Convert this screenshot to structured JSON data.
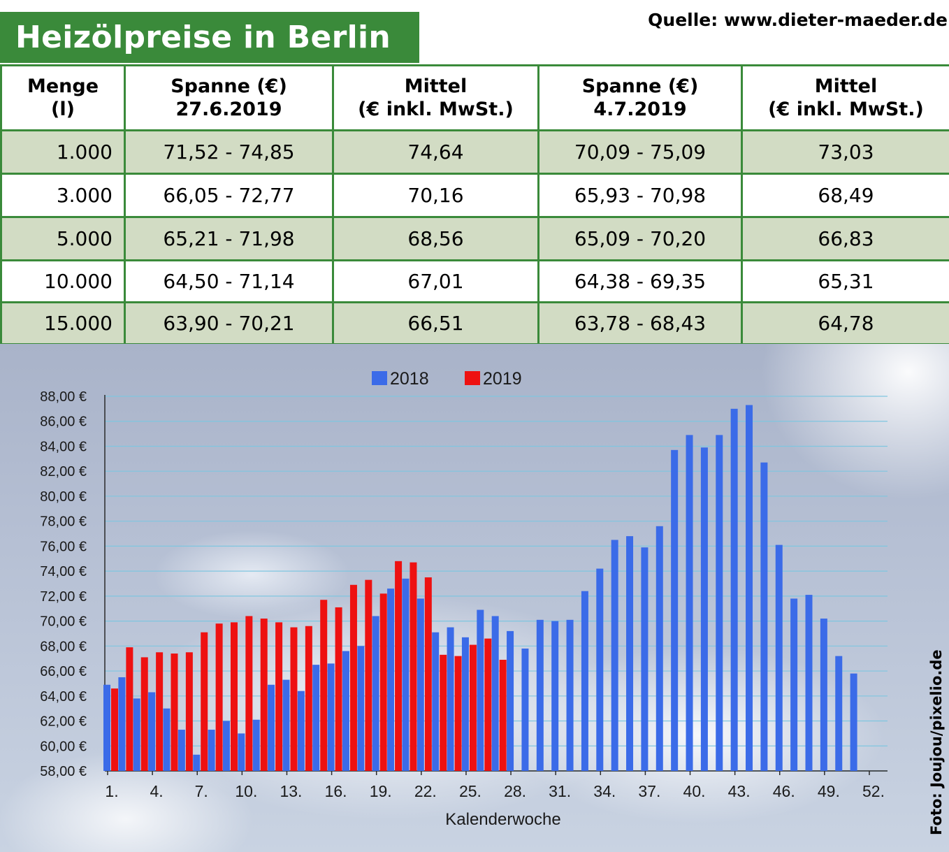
{
  "header": {
    "title": "Heizölpreise in Berlin",
    "source": "Quelle: www.dieter-maeder.de"
  },
  "table": {
    "headers": [
      [
        "Menge",
        "(l)"
      ],
      [
        "Spanne (€)",
        "27.6.2019"
      ],
      [
        "Mittel",
        "(€ inkl. MwSt.)"
      ],
      [
        "Spanne (€)",
        "4.7.2019"
      ],
      [
        "Mittel",
        "(€ inkl. MwSt.)"
      ]
    ],
    "rows": [
      [
        "1.000",
        "71,52 - 74,85",
        "74,64",
        "70,09 - 75,09",
        "73,03"
      ],
      [
        "3.000",
        "66,05 - 72,77",
        "70,16",
        "65,93 - 70,98",
        "68,49"
      ],
      [
        "5.000",
        "65,21 - 71,98",
        "68,56",
        "65,09 - 70,20",
        "66,83"
      ],
      [
        "10.000",
        "64,50 - 71,14",
        "67,01",
        "64,38 - 69,35",
        "65,31"
      ],
      [
        "15.000",
        "63,90 - 70,21",
        "66,51",
        "63,78 - 68,43",
        "64,78"
      ]
    ]
  },
  "chart_data": {
    "type": "bar",
    "xlabel": "Kalenderwoche",
    "ylabel": "",
    "ylim": [
      58,
      88
    ],
    "y_ticks": [
      "58,00 €",
      "60,00 €",
      "62,00 €",
      "64,00 €",
      "66,00 €",
      "68,00 €",
      "70,00 €",
      "72,00 €",
      "74,00 €",
      "76,00 €",
      "78,00 €",
      "80,00 €",
      "82,00 €",
      "84,00 €",
      "86,00 €",
      "88,00 €"
    ],
    "x_ticks": [
      "1.",
      "4.",
      "7.",
      "10.",
      "13.",
      "16.",
      "19.",
      "22.",
      "25.",
      "28.",
      "31.",
      "34.",
      "37.",
      "40.",
      "43.",
      "46.",
      "49.",
      "52."
    ],
    "categories": [
      1,
      2,
      3,
      4,
      5,
      6,
      7,
      8,
      9,
      10,
      11,
      12,
      13,
      14,
      15,
      16,
      17,
      18,
      19,
      20,
      21,
      22,
      23,
      24,
      25,
      26,
      27,
      28,
      29,
      30,
      31,
      32,
      33,
      34,
      35,
      36,
      37,
      38,
      39,
      40,
      41,
      42,
      43,
      44,
      45,
      46,
      47,
      48,
      49,
      50,
      51,
      52
    ],
    "legend_position": "top-center",
    "grid": true,
    "series": [
      {
        "name": "2018",
        "color": "#3b6be8",
        "values": [
          64.9,
          65.5,
          63.8,
          64.3,
          63.0,
          61.3,
          59.3,
          61.3,
          62.0,
          61.0,
          62.1,
          64.9,
          65.3,
          64.4,
          66.5,
          66.6,
          67.6,
          68.0,
          70.4,
          72.6,
          73.4,
          71.8,
          69.1,
          69.5,
          68.7,
          70.9,
          70.4,
          69.2,
          67.8,
          70.1,
          70.0,
          70.1,
          72.4,
          74.2,
          76.5,
          76.8,
          75.9,
          77.6,
          83.7,
          84.9,
          83.9,
          84.9,
          87.0,
          87.3,
          82.7,
          76.1,
          71.8,
          72.1,
          70.2,
          67.2,
          65.8,
          null
        ]
      },
      {
        "name": "2019",
        "color": "#ee1111",
        "values": [
          64.6,
          67.9,
          67.1,
          67.5,
          67.4,
          67.5,
          69.1,
          69.8,
          69.9,
          70.4,
          70.2,
          69.9,
          69.5,
          69.6,
          71.7,
          71.1,
          72.9,
          73.3,
          72.2,
          74.8,
          74.7,
          73.5,
          67.3,
          67.2,
          68.1,
          68.6,
          66.9,
          null,
          null,
          null,
          null,
          null,
          null,
          null,
          null,
          null,
          null,
          null,
          null,
          null,
          null,
          null,
          null,
          null,
          null,
          null,
          null,
          null,
          null,
          null,
          null,
          null
        ]
      }
    ]
  },
  "credit": "Foto: Joujou/pixelio.de"
}
